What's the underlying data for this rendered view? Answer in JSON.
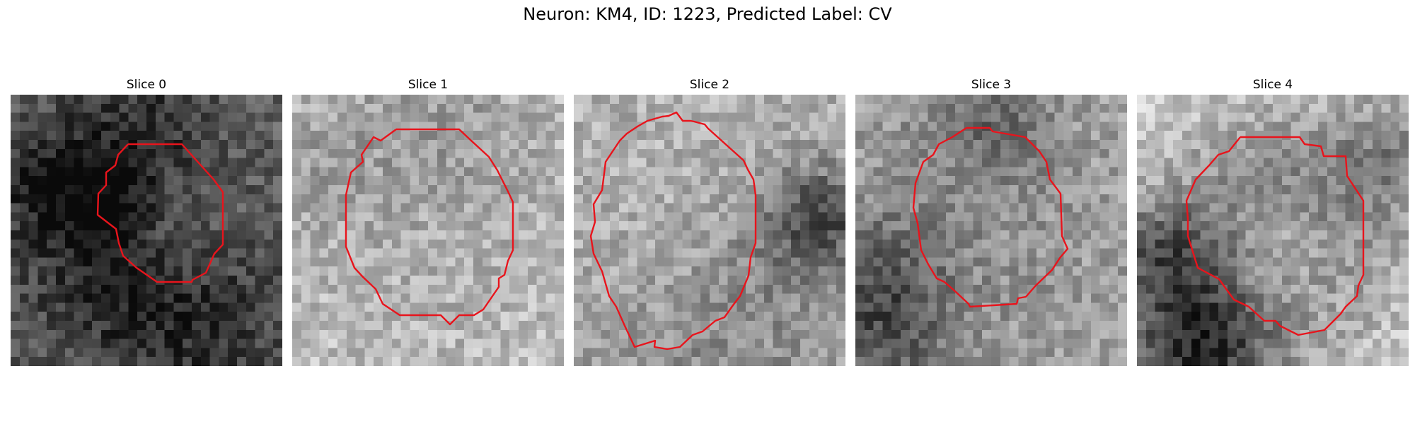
{
  "figure": {
    "title": "Neuron: KM4, ID: 1223, Predicted Label: CV"
  },
  "contour_color": "#e8141c",
  "panels": [
    {
      "title": "Slice 0"
    },
    {
      "title": "Slice 1"
    },
    {
      "title": "Slice 2"
    },
    {
      "title": "Slice 3"
    },
    {
      "title": "Slice 4"
    }
  ]
}
